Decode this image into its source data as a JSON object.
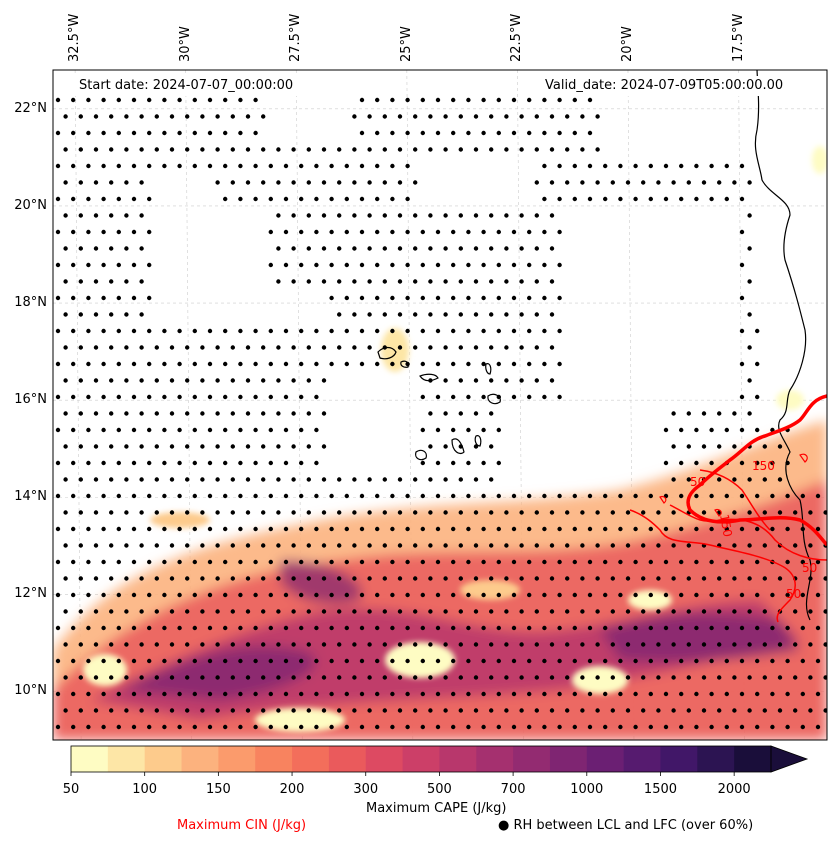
{
  "map": {
    "start_date": "Start date: 2024-07-07_00:00:00",
    "valid_date": "Valid_date: 2024-07-09T05:00:00.00",
    "lon_labels": [
      "32.5°W",
      "30°W",
      "27.5°W",
      "25°W",
      "22.5°W",
      "20°W",
      "17.5°W"
    ],
    "lat_labels": [
      "22°N",
      "20°N",
      "18°N",
      "16°N",
      "14°N",
      "12°N",
      "10°N"
    ],
    "lon_values": [
      -32.5,
      -30,
      -27.5,
      -25,
      -22.5,
      -20,
      -17.5
    ],
    "lat_values": [
      22,
      20,
      18,
      16,
      14,
      12,
      10
    ],
    "extent": {
      "lon_min": -33.0,
      "lon_max": -15.5,
      "lat_min": 9.0,
      "lat_max": 22.8
    }
  },
  "colorbar": {
    "label": "Maximum CAPE (J/kg)",
    "ticks": [
      "50",
      "100",
      "150",
      "200",
      "300",
      "500",
      "700",
      "1000",
      "1500",
      "2000"
    ],
    "levels": [
      50,
      75,
      100,
      125,
      150,
      175,
      200,
      250,
      300,
      400,
      500,
      600,
      700,
      850,
      1000,
      1250,
      1500,
      1750,
      2000
    ],
    "colors": [
      "#fefcc3",
      "#fde6a6",
      "#fdcb8c",
      "#fcb27e",
      "#fb9b6c",
      "#f8835f",
      "#f36e5b",
      "#ea5a5c",
      "#dd4a62",
      "#cc3f68",
      "#b8376c",
      "#a5306f",
      "#932b71",
      "#7f2572",
      "#6b1f73",
      "#561b6f",
      "#411768",
      "#2c1452",
      "#1a0e3a"
    ],
    "extend": "max"
  },
  "legend": {
    "cin_label": "Maximum CIN (J/kg)",
    "cin_color": "#ff0000",
    "rh_symbol": "●",
    "rh_label": "RH between LCL and LFC (over 60%)"
  },
  "cin_contour_labels": [
    "150",
    "50",
    "150",
    "50",
    "50"
  ]
}
